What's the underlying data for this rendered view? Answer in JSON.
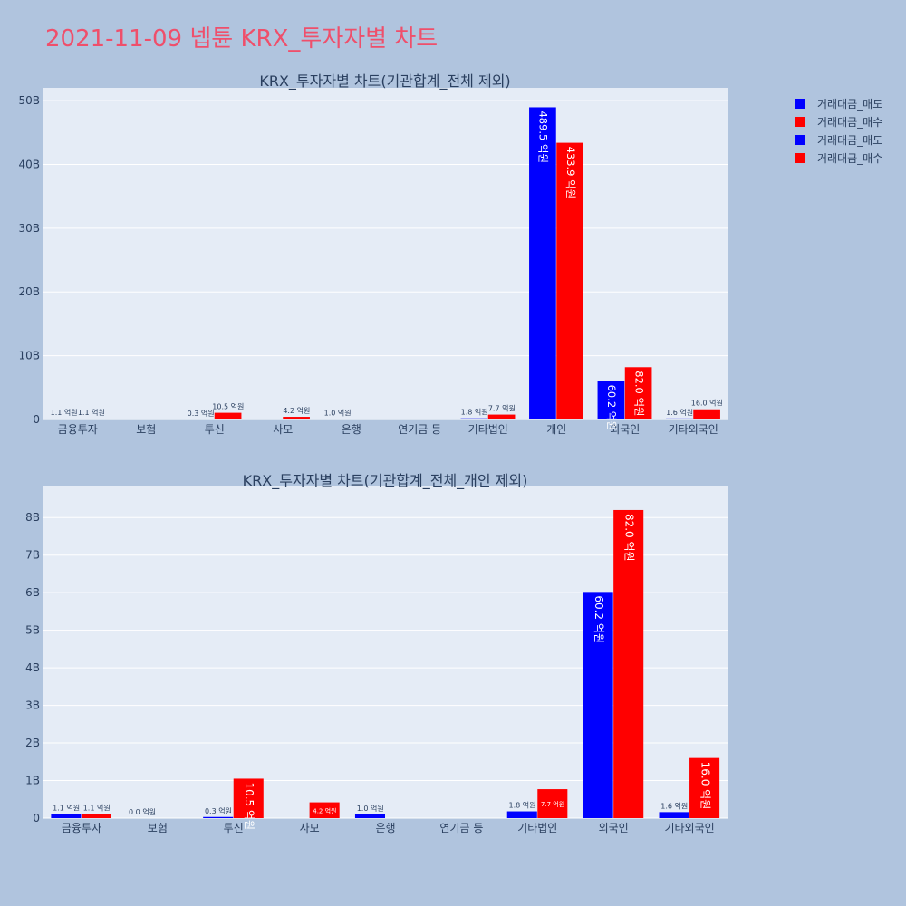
{
  "page": {
    "title": "2021-11-09 넵튠 KRX_투자자별 차트"
  },
  "colors": {
    "sell": "#0000ff",
    "buy": "#ff0000",
    "plot_bg": "#e5ecf6",
    "page_bg": "#b0c4de",
    "title": "#ef4f6b"
  },
  "legend": {
    "position": "top-right",
    "items": [
      {
        "label": "거래대금_매도",
        "color": "#0000ff"
      },
      {
        "label": "거래대금_매수",
        "color": "#ff0000"
      },
      {
        "label": "거래대금_매도",
        "color": "#0000ff"
      },
      {
        "label": "거래대금_매수",
        "color": "#ff0000"
      }
    ]
  },
  "chart_data": [
    {
      "type": "bar",
      "title": "KRX_투자자별 차트(기관합계_전체 제외)",
      "categories": [
        "금융투자",
        "보험",
        "투신",
        "사모",
        "은행",
        "연기금 등",
        "기타법인",
        "개인",
        "외국인",
        "기타외국인"
      ],
      "ylim": [
        0,
        52
      ],
      "yticks": [
        0,
        10,
        20,
        30,
        40,
        50
      ],
      "yticklabels": [
        "0",
        "10B",
        "20B",
        "30B",
        "40B",
        "50B"
      ],
      "grid": true,
      "series": [
        {
          "name": "거래대금_매도",
          "color": "#0000ff",
          "values": [
            0.11,
            null,
            0.03,
            null,
            0.1,
            null,
            0.18,
            48.95,
            6.02,
            0.16
          ],
          "labels": [
            "1.1 억원",
            "",
            "0.3 억원",
            "",
            "1.0 억원",
            "",
            "1.8 억원",
            "489.5 억원",
            "60.2 억원",
            "1.6 억원"
          ]
        },
        {
          "name": "거래대금_매수",
          "color": "#ff0000",
          "values": [
            0.11,
            null,
            1.05,
            0.42,
            null,
            null,
            0.77,
            43.39,
            8.2,
            1.6
          ],
          "labels": [
            "1.1 억원",
            "",
            "10.5 억원",
            "4.2 억원",
            "",
            "",
            "7.7 억원",
            "433.9 억원",
            "82.0 억원",
            "16.0 억원"
          ]
        }
      ]
    },
    {
      "type": "bar",
      "title": "KRX_투자자별 차트(기관합계_전체_개인 제외)",
      "categories": [
        "금융투자",
        "보험",
        "투신",
        "사모",
        "은행",
        "연기금 등",
        "기타법인",
        "외국인",
        "기타외국인"
      ],
      "ylim": [
        0,
        8.85
      ],
      "yticks": [
        0,
        1,
        2,
        3,
        4,
        5,
        6,
        7,
        8
      ],
      "yticklabels": [
        "0",
        "1B",
        "2B",
        "3B",
        "4B",
        "5B",
        "6B",
        "7B",
        "8B"
      ],
      "grid": true,
      "series": [
        {
          "name": "거래대금_매도",
          "color": "#0000ff",
          "values": [
            0.11,
            0.0,
            0.03,
            null,
            0.1,
            null,
            0.18,
            6.02,
            0.16
          ],
          "labels": [
            "1.1 억원",
            "0.0 억원",
            "0.3 억원",
            "",
            "1.0 억원",
            "",
            "1.8 억원",
            "60.2 억원",
            "1.6 억원"
          ]
        },
        {
          "name": "거래대금_매수",
          "color": "#ff0000",
          "values": [
            0.11,
            null,
            1.05,
            0.42,
            null,
            null,
            0.77,
            8.2,
            1.6
          ],
          "labels": [
            "1.1 억원",
            "",
            "10.5 억원",
            "4.2 억원",
            "",
            "",
            "7.7 억원",
            "82.0 억원",
            "16.0 억원"
          ]
        }
      ]
    }
  ]
}
